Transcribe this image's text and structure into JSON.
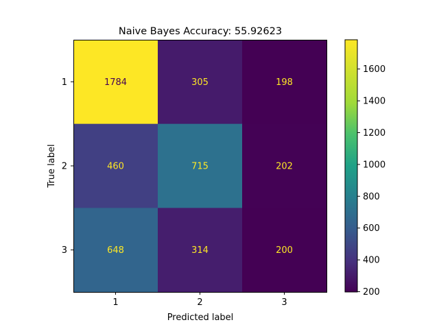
{
  "chart_data": {
    "type": "heatmap",
    "title": "Naive Bayes Accuracy: 55.92623",
    "xlabel": "Predicted label",
    "ylabel": "True label",
    "x_categories": [
      "1",
      "2",
      "3"
    ],
    "y_categories": [
      "1",
      "2",
      "3"
    ],
    "values": [
      [
        1784,
        305,
        198
      ],
      [
        460,
        715,
        202
      ],
      [
        648,
        314,
        200
      ]
    ],
    "colormap": "viridis",
    "colorbar": {
      "range": [
        198,
        1784
      ],
      "ticks": [
        200,
        400,
        600,
        800,
        1000,
        1200,
        1400,
        1600
      ],
      "tick_labels": [
        "200",
        "400",
        "600",
        "800",
        "1000",
        "1200",
        "1400",
        "1600"
      ]
    },
    "text_color_on_dark": "#fde725",
    "text_color_on_light": "#440154",
    "grid": false
  }
}
